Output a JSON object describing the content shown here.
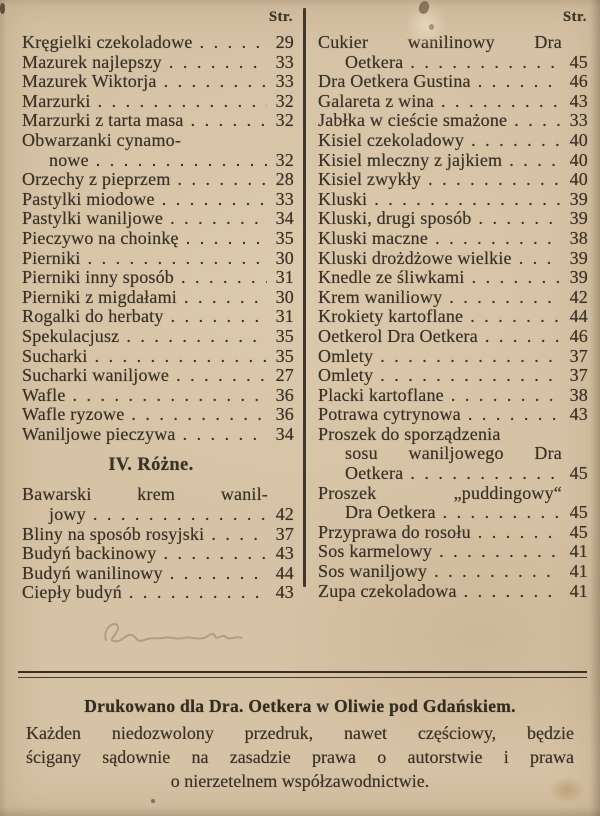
{
  "page": {
    "columns": [
      {
        "header": "Str.",
        "rows": [
          {
            "text": "Kręgielki czekoladowe",
            "page": "29"
          },
          {
            "text": "Mazurek najlepszy",
            "page": "33"
          },
          {
            "text": "Mazurek Wiktorja",
            "page": "33"
          },
          {
            "text": "Marzurki",
            "page": "32"
          },
          {
            "text": "Marzurki z tarta masa",
            "page": "32"
          },
          {
            "text": "Obwarzanki cynamo-",
            "cont": true
          },
          {
            "text": "nowe",
            "page": "32",
            "indent": true
          },
          {
            "text": "Orzechy z pieprzem",
            "page": "28"
          },
          {
            "text": "Pastylki miodowe",
            "page": "33"
          },
          {
            "text": "Pastylki waniljowe",
            "page": "34"
          },
          {
            "text": "Pieczywo na choinkę",
            "page": "35"
          },
          {
            "text": "Pierniki",
            "page": "30"
          },
          {
            "text": "Pierniki inny sposób",
            "page": "31"
          },
          {
            "text": "Pierniki z migdałami",
            "page": "30"
          },
          {
            "text": "Rogalki do herbaty",
            "page": "31"
          },
          {
            "text": "Spekulacjusz",
            "page": "35"
          },
          {
            "text": "Sucharki",
            "page": "35"
          },
          {
            "text": "Sucharki waniljowe",
            "page": "27"
          },
          {
            "text": "Wafle",
            "page": "36"
          },
          {
            "text": "Wafle ryzowe",
            "page": "36"
          },
          {
            "text": "Waniljowe pieczywa",
            "page": "34"
          },
          {
            "section": "IV. Różne."
          },
          {
            "text": "Bawarski krem wanil-",
            "cont": true,
            "spread": true
          },
          {
            "text": "jowy",
            "page": "42",
            "indent": true
          },
          {
            "text": "Bliny na sposób rosyjski",
            "page": "37"
          },
          {
            "text": "Budyń backinowy",
            "page": "43"
          },
          {
            "text": "Budyń wanilinowy",
            "page": "44"
          },
          {
            "text": "Ciepły budyń",
            "page": "43"
          }
        ]
      },
      {
        "header": "Str.",
        "rows": [
          {
            "text": "Cukier wanilinowy Dra",
            "cont": true,
            "spread": true
          },
          {
            "text": "Oetkera",
            "page": "45",
            "indent": true
          },
          {
            "text": "Dra Oetkera Gustina",
            "page": "46"
          },
          {
            "text": "Galareta z wina",
            "page": "43"
          },
          {
            "text": "Jabłka w cieście smażone",
            "page": "33"
          },
          {
            "text": "Kisiel czekoladowy",
            "page": "40"
          },
          {
            "text": "Kisiel mleczny z jajkiem",
            "page": "40"
          },
          {
            "text": "Kisiel zwykły",
            "page": "40"
          },
          {
            "text": "Kluski",
            "page": "39"
          },
          {
            "text": "Kluski, drugi sposób",
            "page": "39"
          },
          {
            "text": "Kluski maczne",
            "page": "38"
          },
          {
            "text": "Kluski drożdżowe wielkie",
            "page": "39"
          },
          {
            "text": "Knedle ze śliwkami",
            "page": "39"
          },
          {
            "text": "Krem waniliowy",
            "page": "42"
          },
          {
            "text": "Krokiety kartoflane",
            "page": "44"
          },
          {
            "text": "Oetkerol Dra Oetkera",
            "page": "46"
          },
          {
            "text": "Omlety",
            "page": "37"
          },
          {
            "text": "Omlety",
            "page": "37"
          },
          {
            "text": "Placki kartoflane",
            "page": "38"
          },
          {
            "text": "Potrawa cytrynowa",
            "page": "43"
          },
          {
            "text": "Proszek do sporządzenia",
            "cont": true
          },
          {
            "text": "sosu waniljowego Dra",
            "cont": true,
            "indent": true,
            "spread": true
          },
          {
            "text": "Oetkera",
            "page": "45",
            "indent": true
          },
          {
            "text": "Proszek „puddingowy“",
            "cont": true,
            "spread": true
          },
          {
            "text": "Dra Oetkera",
            "page": "45",
            "indent": true
          },
          {
            "text": "Przyprawa do rosołu",
            "page": "45"
          },
          {
            "text": "Sos karmelowy",
            "page": "41"
          },
          {
            "text": "Sos waniljowy",
            "page": "41"
          },
          {
            "text": "Zupa czekoladowa",
            "page": "41"
          }
        ]
      }
    ],
    "footer": {
      "title": "Drukowano dla Dra. Oetkera w Oliwie pod Gdańskiem.",
      "lines": [
        "Każden niedozwolony przedruk, nawet częściowy, będzie",
        "ścigany sądownie na zasadzie prawa o autorstwie i prawa",
        "o nierzetelnem współzawodnictwie."
      ]
    },
    "annotations": {
      "handwriting": "illegible pencil signature"
    },
    "colors": {
      "paper": "#d6c2a4",
      "ink": "#3b3227"
    }
  }
}
